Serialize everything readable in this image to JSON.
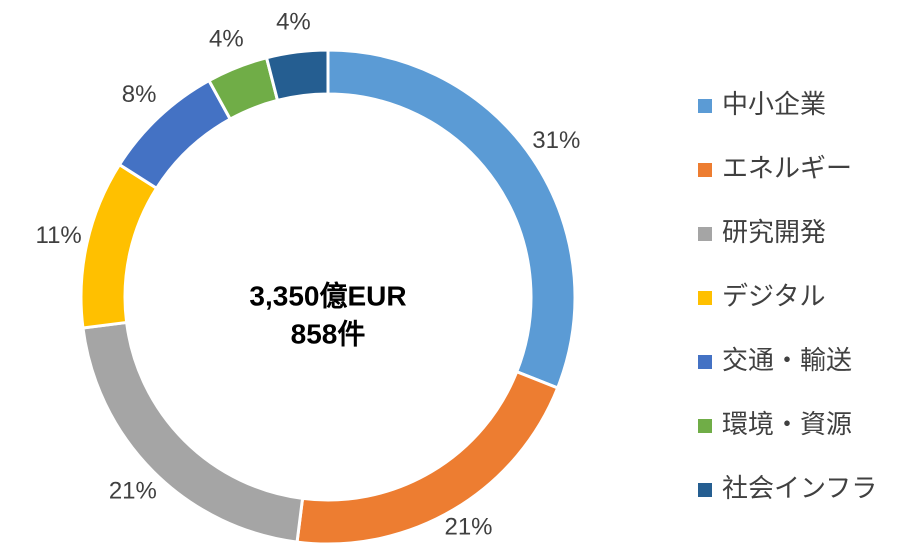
{
  "chart_data": {
    "type": "donut",
    "categories": [
      "中小企業",
      "エネルギー",
      "研究開発",
      "デジタル",
      "交通・輸送",
      "環境・資源",
      "社会インフラ"
    ],
    "values": [
      31,
      21,
      21,
      11,
      8,
      4,
      4
    ],
    "value_labels": [
      "31%",
      "21%",
      "21%",
      "11%",
      "8%",
      "4%",
      "4%"
    ],
    "colors": [
      "#5b9bd5",
      "#ed7d31",
      "#a5a5a5",
      "#ffc000",
      "#4472c4",
      "#70ad47",
      "#255e91"
    ],
    "annotations": [
      "3,350億EUR",
      "858件"
    ],
    "legend": "right"
  }
}
